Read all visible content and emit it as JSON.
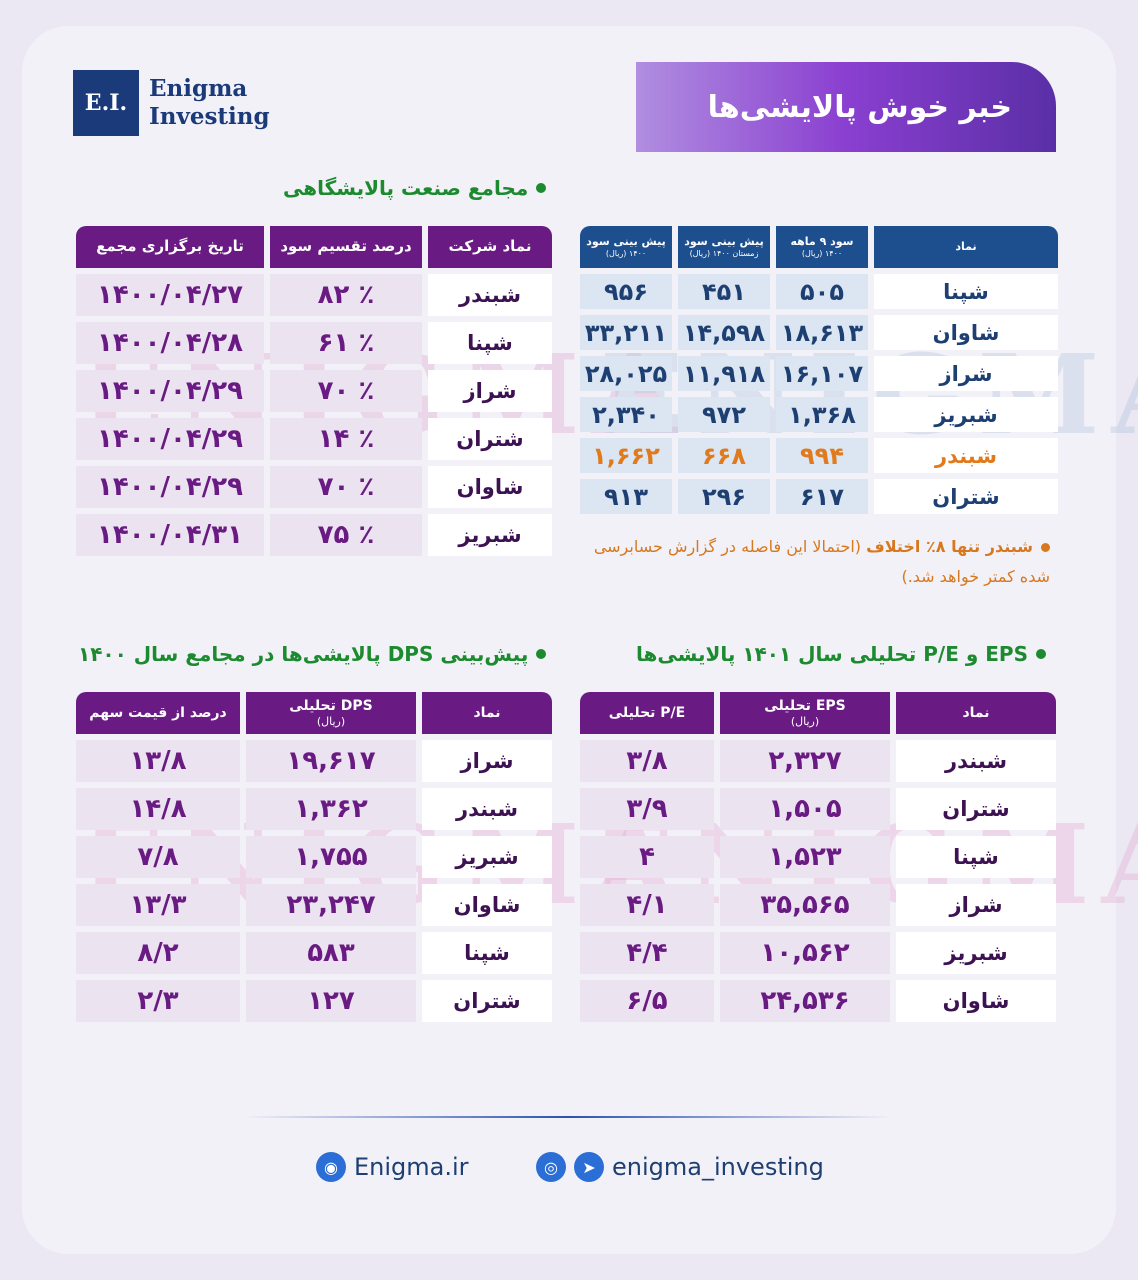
{
  "brand": {
    "logo_mark": "E.I.",
    "logo_line1": "Enigma",
    "logo_line2": "Investing",
    "watermark": "ENIGMA"
  },
  "banner": {
    "title": "خبر خوش پالایشی‌ها"
  },
  "section_agm": {
    "title": "مجامع صنعت پالایشگاهی",
    "headers": [
      "نماد شرکت",
      "درصد تقسیم سود",
      "تاریخ برگزاری مجمع"
    ],
    "rows": [
      [
        "شبندر",
        "٨٢ ٪",
        "١۴٠٠/٠۴/٢٧"
      ],
      [
        "شپنا",
        "۶١ ٪",
        "١۴٠٠/٠۴/٢٨"
      ],
      [
        "شراز",
        "٧٠ ٪",
        "١۴٠٠/٠۴/٢٩"
      ],
      [
        "شتران",
        "١۴ ٪",
        "١۴٠٠/٠۴/٢٩"
      ],
      [
        "شاوان",
        "٧٠ ٪",
        "١۴٠٠/٠۴/٢٩"
      ],
      [
        "شبریز",
        "٧۵ ٪",
        "١۴٠٠/٠۴/٣١"
      ]
    ]
  },
  "section_profit": {
    "headers": [
      {
        "main": "نماد",
        "sub": ""
      },
      {
        "main": "سود ۹ ماهه",
        "sub": "۱۴۰۰ (ریال)"
      },
      {
        "main": "پیش بینی سود",
        "sub": "زمستان ۱۴۰۰ (ریال)"
      },
      {
        "main": "پیش بینی سود",
        "sub": "۱۴۰۰ (ریال)"
      }
    ],
    "rows": [
      [
        "شپنا",
        "۵٠۵",
        "۴۵١",
        "٩۵۶"
      ],
      [
        "شاوان",
        "١٨,۶١٣",
        "١۴,۵٩٨",
        "٣٣,٢١١"
      ],
      [
        "شراز",
        "١۶,١٠٧",
        "١١,٩١٨",
        "٢٨,٠٢۵"
      ],
      [
        "شبریز",
        "١,٣۶٨",
        "٩٧٢",
        "٢,٣۴٠"
      ],
      [
        "شبندر",
        "٩٩۴",
        "۶۶٨",
        "١,۶۶٢"
      ],
      [
        "شتران",
        "۶١٧",
        "٢٩۶",
        "٩١٣"
      ]
    ],
    "note_bold": "شبندر تنها ٨٪ اختلاف",
    "note_text": " (احتمالا این فاصله در گزارش حسابرسی شده کمتر خواهد شد.)"
  },
  "section_dps": {
    "title": "پیش‌بینی DPS پالایشی‌ها در مجامع سال ۱۴۰۰",
    "headers": [
      {
        "main": "نماد",
        "sub": ""
      },
      {
        "main": "DPS تحلیلی",
        "sub": "(ریال)"
      },
      {
        "main": "درصد از قیمت سهم",
        "sub": ""
      }
    ],
    "rows": [
      [
        "شراز",
        "١٩,۶١٧",
        "١٣/٨"
      ],
      [
        "شبندر",
        "١,٣۶٢",
        "١۴/٨"
      ],
      [
        "شبریز",
        "١,٧۵۵",
        "٧/٨"
      ],
      [
        "شاوان",
        "٢٣,٢۴٧",
        "١٣/٣"
      ],
      [
        "شپنا",
        "۵٨٣",
        "٨/٢"
      ],
      [
        "شتران",
        "١٢٧",
        "٢/٣"
      ]
    ]
  },
  "section_eps": {
    "title": "EPS و P/E تحلیلی سال ۱۴۰۱ پالایشی‌ها",
    "headers": [
      {
        "main": "نماد",
        "sub": ""
      },
      {
        "main": "EPS تحلیلی",
        "sub": "(ریال)"
      },
      {
        "main": "P/E تحلیلی",
        "sub": ""
      }
    ],
    "rows": [
      [
        "شبندر",
        "٢,٣٢٧",
        "٣/٨"
      ],
      [
        "شتران",
        "١,۵٠۵",
        "٣/٩"
      ],
      [
        "شپنا",
        "١,۵٢٣",
        "۴"
      ],
      [
        "شراز",
        "٣۵,۵۶۵",
        "۴/١"
      ],
      [
        "شبریز",
        "١٠,۵۶٢",
        "۴/۴"
      ],
      [
        "شاوان",
        "٢۴,۵٣۶",
        "۶/۵"
      ]
    ]
  },
  "footer": {
    "website": "Enigma.ir",
    "social": "enigma_investing",
    "globe_icon": "globe-icon",
    "instagram_icon": "instagram-icon",
    "telegram_icon": "telegram-icon"
  }
}
